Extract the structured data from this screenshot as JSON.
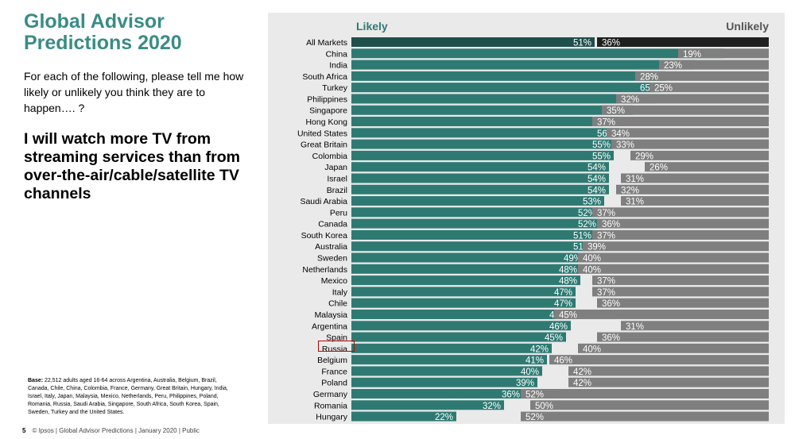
{
  "page": {
    "title": "Global Advisor Predictions 2020",
    "intro": "For each of the following, please tell me how likely or unlikely you think they are to happen…. ?",
    "question": "I will watch more TV from streaming services than from over-the-air/cable/satellite TV channels",
    "base_label": "Base:",
    "base_text": "22,512 adults aged 16-64 across Argentina, Australia, Belgium, Brazil, Canada, Chile, China, Colombia, France, Germany, Great Britain, Hungary, India, Israel, Italy, Japan, Malaysia, Mexico, Netherlands, Peru, Philippines, Poland, Romania, Russia, Saudi Arabia, Singapore, South Africa, South Korea, Spain, Sweden, Turkey and the United States.",
    "page_number": "5",
    "footer": "© Ipsos | Global Advisor Predictions | January 2020 | Public"
  },
  "colors": {
    "title": "#3a8c86",
    "likely": "#2e7a73",
    "all_markets_likely": "#1f4f4b",
    "unlikely": "#7f7f7f",
    "all_markets_unlikely": "#1f1f1f",
    "panel": "#eaeaea",
    "highlight": "#c00000"
  },
  "chart_data": {
    "type": "bar",
    "orientation": "horizontal",
    "legend": [
      "Likely",
      "Unlikely"
    ],
    "categories": [
      "All Markets",
      "China",
      "India",
      "South Africa",
      "Turkey",
      "Philippines",
      "Singapore",
      "Hong Kong",
      "United States",
      "Great Britain",
      "Colombia",
      "Japan",
      "Israel",
      "Brazil",
      "Saudi Arabia",
      "Peru",
      "Canada",
      "South Korea",
      "Australia",
      "Sweden",
      "Netherlands",
      "Mexico",
      "Italy",
      "Chile",
      "Malaysia",
      "Argentina",
      "Spain",
      "Russia",
      "Belgium",
      "France",
      "Poland",
      "Germany",
      "Romania",
      "Hungary"
    ],
    "series": [
      {
        "name": "Likely",
        "values": [
          51,
          78,
          72,
          66,
          65,
          64,
          59,
          57,
          56,
          55,
          55,
          54,
          54,
          54,
          53,
          52,
          52,
          51,
          51,
          49,
          48,
          48,
          47,
          47,
          46,
          46,
          45,
          42,
          41,
          40,
          39,
          36,
          32,
          22
        ]
      },
      {
        "name": "Unlikely",
        "values": [
          36,
          19,
          23,
          28,
          25,
          32,
          35,
          37,
          34,
          33,
          29,
          26,
          31,
          32,
          31,
          37,
          36,
          37,
          39,
          40,
          40,
          37,
          37,
          36,
          45,
          31,
          36,
          40,
          46,
          42,
          42,
          52,
          50,
          52
        ]
      }
    ],
    "highlighted_category": "Russia",
    "value_suffix": "%",
    "xlim": [
      0,
      100
    ]
  }
}
